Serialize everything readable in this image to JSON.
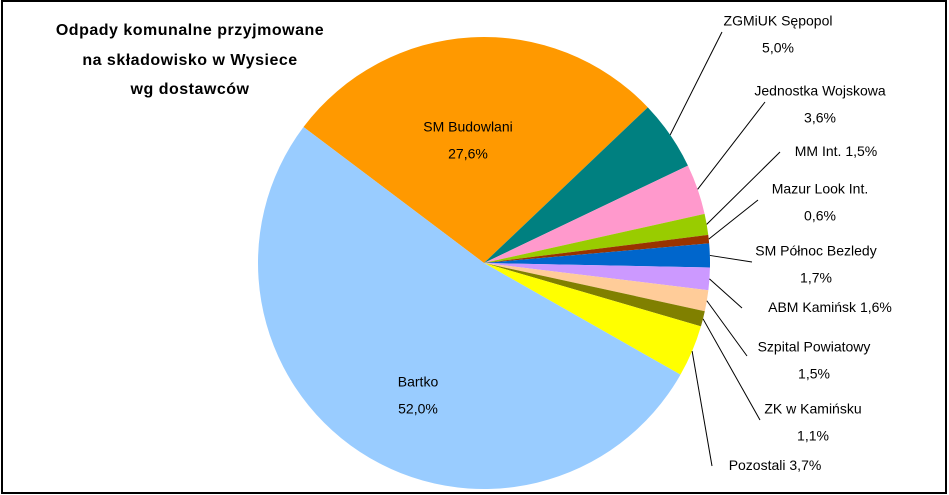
{
  "chart_data": {
    "type": "pie",
    "title": [
      "Odpady komunalne przyjmowane",
      "na składowisko w Wysiece",
      "wg dostawców"
    ],
    "categories": [
      "SM Budowlani",
      "ZGMiUK Sępopol",
      "Jednostka Wojskowa",
      "MM Int.",
      "Mazur Look Int.",
      "SM Północ Bezledy",
      "ABM Kamińsk",
      "Szpital Powiatowy",
      "ZK w Kamińsku",
      "Pozostali",
      "Bartko"
    ],
    "values": [
      27.6,
      5.0,
      3.6,
      1.5,
      0.6,
      1.7,
      1.6,
      1.5,
      1.1,
      3.7,
      52.0
    ],
    "value_labels": [
      "27,6%",
      "5,0%",
      "3,6%",
      "1,5%",
      "0,6%",
      "1,7%",
      "1,6%",
      "1,5%",
      "1,1%",
      "3,7%",
      "52,0%"
    ],
    "colors": [
      "#ff9900",
      "#008080",
      "#ff99cc",
      "#99cc00",
      "#993300",
      "#0066cc",
      "#cc99ff",
      "#ffcc99",
      "#808000",
      "#ffff00",
      "#99ccff"
    ]
  }
}
